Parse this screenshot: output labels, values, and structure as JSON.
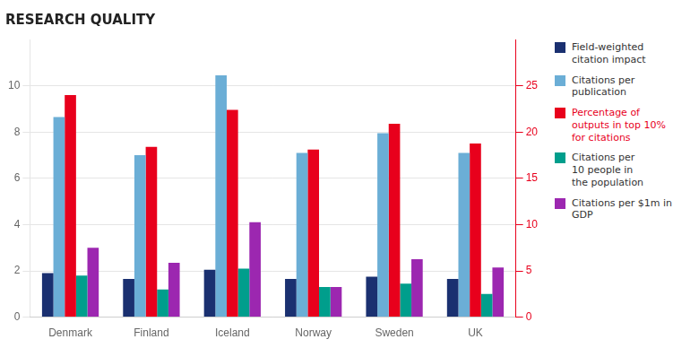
{
  "chart_data": {
    "type": "bar",
    "title": "RESEARCH QUALITY",
    "categories": [
      "Denmark",
      "Finland",
      "Iceland",
      "Norway",
      "Sweden",
      "UK"
    ],
    "series": [
      {
        "name": "Field-weighted\ncitation impact",
        "color": "#1a3070",
        "values": [
          1.9,
          1.65,
          2.05,
          1.65,
          1.75,
          1.65
        ]
      },
      {
        "name": "Citations per\npublication",
        "color": "#6baed6",
        "values": [
          8.65,
          7.0,
          10.45,
          7.1,
          7.95,
          7.1
        ]
      },
      {
        "name": "Percentage of\noutputs in top 10%\nfor citations",
        "color": "#e8001c",
        "values": [
          24.0,
          18.4,
          22.4,
          18.1,
          20.9,
          18.75
        ],
        "axis": "y2"
      },
      {
        "name": "Citations per\n10 people in\nthe population",
        "color": "#009e8c",
        "values": [
          1.8,
          1.2,
          2.1,
          1.3,
          1.45,
          1.0
        ]
      },
      {
        "name": "Citations per $1m in\nGDP",
        "color": "#9c27b0",
        "values": [
          3.0,
          2.35,
          4.1,
          1.3,
          2.5,
          2.15
        ]
      }
    ],
    "ylim": [
      0,
      12
    ],
    "yticks": [
      0,
      2,
      4,
      6,
      8,
      10
    ],
    "y2lim": [
      0,
      30
    ],
    "y2ticks": [
      0,
      5,
      10,
      15,
      20,
      25
    ],
    "grid": true,
    "legend": "right"
  }
}
